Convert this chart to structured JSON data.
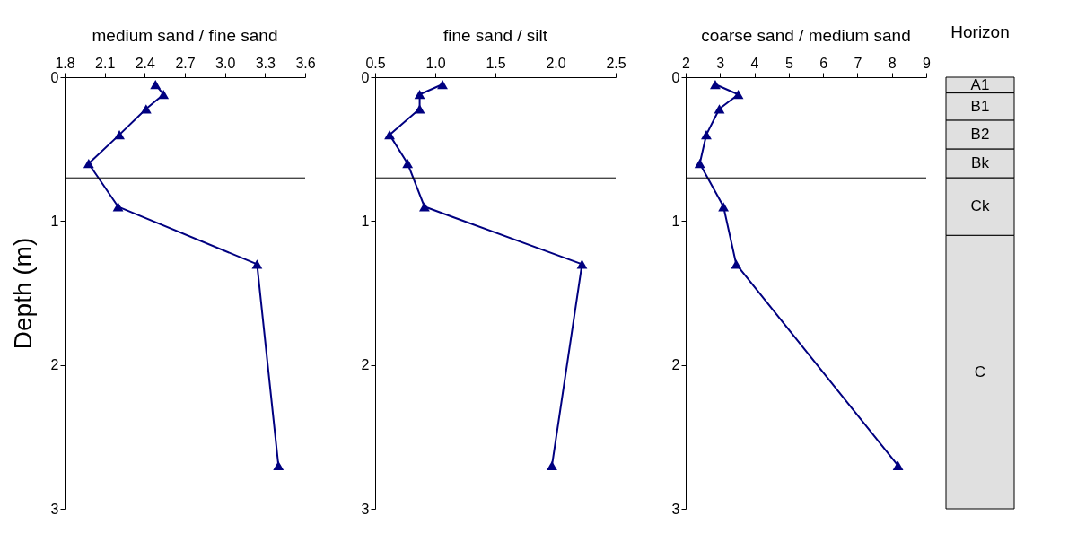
{
  "chart_data": [
    {
      "type": "line",
      "title": "medium sand / fine sand",
      "ylabel": "Depth (m)",
      "xlim": [
        1.8,
        3.6
      ],
      "xticks": [
        1.8,
        2.1,
        2.4,
        2.7,
        {
          "value": 3,
          "label": "3.0"
        },
        3.3,
        3.6
      ],
      "ylim": [
        3,
        0
      ],
      "yticks": [
        0,
        1,
        2,
        3
      ],
      "marker": "triangle",
      "grid": false,
      "series": [
        {
          "color": "#000080",
          "x": [
            2.48,
            2.54,
            2.41,
            2.21,
            1.98,
            2.2,
            3.24,
            3.4
          ],
          "values": [
            0.05,
            0.12,
            0.22,
            0.4,
            0.6,
            0.9,
            1.3,
            2.7
          ]
        }
      ],
      "ref_lines": [
        {
          "axis": "y",
          "value": 0.7
        }
      ]
    },
    {
      "type": "line",
      "title": "fine sand / silt",
      "xlim": [
        0.5,
        2.5
      ],
      "xticks": [
        0.5,
        {
          "value": 1,
          "label": "1.0"
        },
        1.5,
        {
          "value": 2,
          "label": "2.0"
        },
        2.5
      ],
      "ylim": [
        3,
        0
      ],
      "yticks": [
        0,
        1,
        2,
        3
      ],
      "marker": "triangle",
      "grid": false,
      "series": [
        {
          "color": "#000080",
          "x": [
            1.06,
            0.87,
            0.87,
            0.62,
            0.77,
            0.91,
            2.22,
            1.97
          ],
          "values": [
            0.05,
            0.12,
            0.22,
            0.4,
            0.6,
            0.9,
            1.3,
            2.7
          ]
        }
      ],
      "ref_lines": [
        {
          "axis": "y",
          "value": 0.7
        }
      ]
    },
    {
      "type": "line",
      "title": "coarse sand / medium sand",
      "xlim": [
        2,
        9
      ],
      "xticks": [
        2,
        3,
        4,
        5,
        6,
        7,
        8,
        9
      ],
      "ylim": [
        3,
        0
      ],
      "yticks": [
        0,
        1,
        2,
        3
      ],
      "marker": "triangle",
      "grid": false,
      "series": [
        {
          "color": "#000080",
          "x": [
            2.86,
            3.53,
            2.98,
            2.6,
            2.41,
            3.1,
            3.47,
            8.18
          ],
          "values": [
            0.05,
            0.12,
            0.22,
            0.4,
            0.6,
            0.9,
            1.3,
            2.7
          ]
        }
      ],
      "ref_lines": [
        {
          "axis": "y",
          "value": 0.7
        }
      ]
    },
    {
      "type": "bar",
      "title": "Horizon",
      "stacked": true,
      "categories": [
        null
      ],
      "ylim": [
        3,
        0
      ],
      "tick_labels": false,
      "series": [
        {
          "name": "A1",
          "color": "#e0e0e0",
          "values": [
            0.11
          ]
        },
        {
          "name": "B1",
          "color": "#e0e0e0",
          "values": [
            0.19
          ]
        },
        {
          "name": "B2",
          "color": "#e0e0e0",
          "values": [
            0.2
          ]
        },
        {
          "name": "Bk",
          "color": "#e0e0e0",
          "values": [
            0.2
          ]
        },
        {
          "name": "Ck",
          "color": "#e0e0e0",
          "values": [
            0.4
          ]
        },
        {
          "name": "C",
          "color": "#e0e0e0",
          "values": [
            1.9
          ]
        }
      ]
    }
  ]
}
